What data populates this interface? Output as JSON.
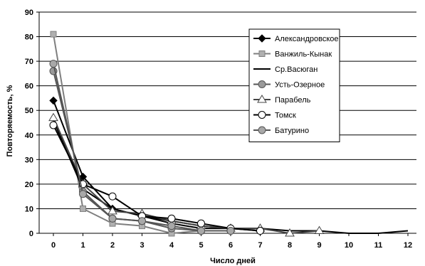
{
  "chart_data": {
    "type": "line",
    "xlabel": "Число дней",
    "ylabel": "Повторяемость, %",
    "xlim": [
      0,
      12
    ],
    "ylim": [
      0,
      90
    ],
    "x_ticks": [
      "0",
      "1",
      "2",
      "3",
      "4",
      "5",
      "6",
      "7",
      "8",
      "9",
      "10",
      "11",
      "12"
    ],
    "y_ticks": [
      "0",
      "10",
      "20",
      "30",
      "40",
      "50",
      "60",
      "70",
      "80",
      "90"
    ],
    "grid": "horizontal",
    "legend_position": "right",
    "series": [
      {
        "name": "Александровское",
        "marker": "diamond",
        "color": "#000000",
        "marker_fill": "#000000",
        "x": [
          0,
          1,
          2,
          3,
          4,
          5,
          6,
          7
        ],
        "y": [
          54,
          23,
          10,
          7,
          4,
          2,
          2,
          1
        ]
      },
      {
        "name": "Ванжиль-Кынак",
        "marker": "square",
        "color": "#7f7f7f",
        "marker_fill": "#b0b0b0",
        "x": [
          0,
          1,
          2,
          3,
          4,
          5
        ],
        "y": [
          81,
          10,
          4,
          3,
          0,
          1
        ]
      },
      {
        "name": "Ср.Васюган",
        "marker": "none",
        "color": "#000000",
        "marker_fill": "none",
        "x": [
          0,
          1,
          2,
          3,
          4,
          5,
          6,
          7,
          8,
          9,
          10,
          11,
          12
        ],
        "y": [
          46,
          18,
          10,
          7,
          5,
          3,
          2,
          2,
          1,
          1,
          0,
          0,
          1
        ]
      },
      {
        "name": "Усть-Озерное",
        "marker": "circle",
        "color": "#555555",
        "marker_fill": "#9a9a9a",
        "x": [
          0,
          1,
          2,
          3,
          4,
          5,
          6
        ],
        "y": [
          66,
          17,
          6,
          5,
          2,
          1,
          1
        ]
      },
      {
        "name": "Парабель",
        "marker": "triangle",
        "color": "#444444",
        "marker_fill": "#ffffff",
        "x": [
          0,
          1,
          2,
          3,
          4,
          5,
          6,
          7,
          8,
          9
        ],
        "y": [
          47,
          20,
          9,
          8,
          5,
          3,
          2,
          2,
          0,
          1
        ]
      },
      {
        "name": "Томск",
        "marker": "circle",
        "color": "#000000",
        "marker_fill": "#ffffff",
        "x": [
          0,
          1,
          2,
          3,
          4,
          5,
          6,
          7
        ],
        "y": [
          44,
          20,
          15,
          7,
          6,
          4,
          2,
          1
        ]
      },
      {
        "name": "Батурино",
        "marker": "circle",
        "color": "#555555",
        "marker_fill": "#a8a8a8",
        "x": [
          0,
          1,
          2,
          3,
          4,
          5,
          6
        ],
        "y": [
          69,
          16,
          6,
          5,
          3,
          1,
          1
        ]
      }
    ]
  }
}
